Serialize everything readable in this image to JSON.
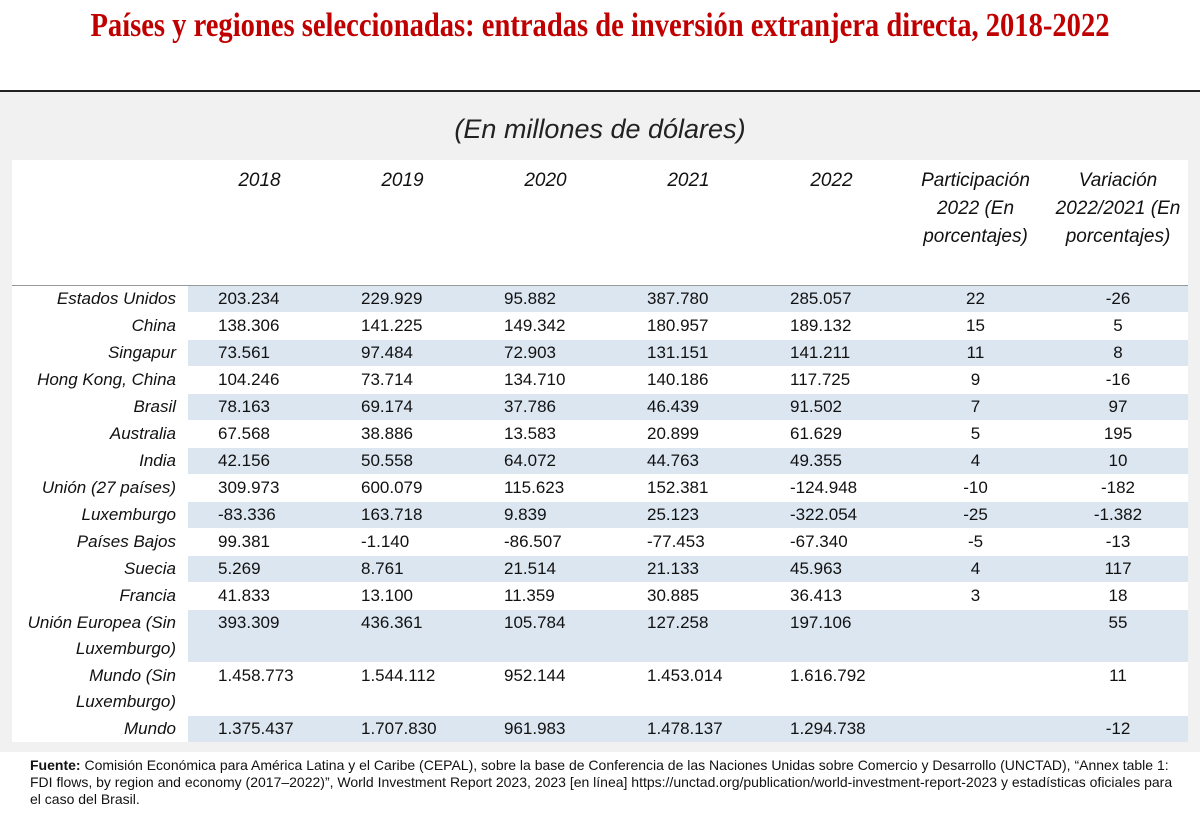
{
  "title": "Países y regiones seleccionadas: entradas de inversión extranjera directa, 2018-2022",
  "subtitle": "(En millones de dólares)",
  "table": {
    "header": {
      "years": [
        "2018",
        "2019",
        "2020",
        "2021",
        "2022"
      ],
      "share": "Participación 2022 (En porcentajes)",
      "change": "Variación 2022/2021 (En porcentajes)"
    },
    "rows": [
      {
        "label": "Estados Unidos",
        "values": [
          "203.234",
          "229.929",
          "95.882",
          "387.780",
          "285.057"
        ],
        "share": "22",
        "change": "-26"
      },
      {
        "label": "China",
        "values": [
          "138.306",
          "141.225",
          "149.342",
          "180.957",
          "189.132"
        ],
        "share": "15",
        "change": "5"
      },
      {
        "label": "Singapur",
        "values": [
          "73.561",
          "97.484",
          "72.903",
          "131.151",
          "141.211"
        ],
        "share": "11",
        "change": "8"
      },
      {
        "label": "Hong Kong, China",
        "values": [
          "104.246",
          "73.714",
          "134.710",
          "140.186",
          "117.725"
        ],
        "share": "9",
        "change": "-16"
      },
      {
        "label": "Brasil",
        "values": [
          "78.163",
          "69.174",
          "37.786",
          "46.439",
          "91.502"
        ],
        "share": "7",
        "change": "97"
      },
      {
        "label": "Australia",
        "values": [
          "67.568",
          "38.886",
          "13.583",
          "20.899",
          "61.629"
        ],
        "share": "5",
        "change": "195"
      },
      {
        "label": "India",
        "values": [
          "42.156",
          "50.558",
          "64.072",
          "44.763",
          "49.355"
        ],
        "share": "4",
        "change": "10"
      },
      {
        "label": "Unión (27 países)",
        "values": [
          "309.973",
          "600.079",
          "115.623",
          "152.381",
          "-124.948"
        ],
        "share": "-10",
        "change": "-182"
      },
      {
        "label": "Luxemburgo",
        "values": [
          "-83.336",
          "163.718",
          "9.839",
          "25.123",
          "-322.054"
        ],
        "share": "-25",
        "change": "-1.382"
      },
      {
        "label": "Países Bajos",
        "values": [
          "99.381",
          "-1.140",
          "-86.507",
          "-77.453",
          "-67.340"
        ],
        "share": "-5",
        "change": "-13"
      },
      {
        "label": "Suecia",
        "values": [
          "5.269",
          "8.761",
          "21.514",
          "21.133",
          "45.963"
        ],
        "share": "4",
        "change": "117"
      },
      {
        "label": "Francia",
        "values": [
          "41.833",
          "13.100",
          "11.359",
          "30.885",
          "36.413"
        ],
        "share": "3",
        "change": "18"
      },
      {
        "label": "Unión Europea (Sin Luxemburgo)",
        "values": [
          "393.309",
          "436.361",
          "105.784",
          "127.258",
          "197.106"
        ],
        "change": "55"
      },
      {
        "label": "Mundo (Sin Luxemburgo)",
        "values": [
          "1.458.773",
          "1.544.112",
          "952.144",
          "1.453.014",
          "1.616.792"
        ],
        "change": "11"
      },
      {
        "label": "Mundo",
        "values": [
          "1.375.437",
          "1.707.830",
          "961.983",
          "1.478.137",
          "1.294.738"
        ],
        "change": "-12"
      }
    ]
  },
  "source": {
    "label": "Fuente:",
    "text": "Comisión Económica para América Latina y el Caribe (CEPAL), sobre la base de Conferencia de las Naciones Unidas sobre Comercio y Desarrollo (UNCTAD), “Annex table 1: FDI flows, by region and economy (2017–2022)”, World Investment Report 2023, 2023 [en línea] https://unctad.org/publication/world-investment-report-2023 y estadísticas oficiales para el caso del Brasil."
  }
}
